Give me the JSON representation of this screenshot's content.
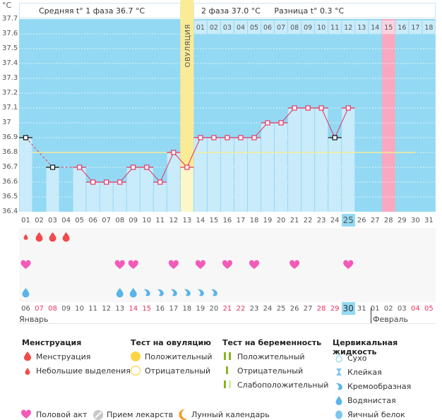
{
  "header": {
    "unit": "°C",
    "phase1": "Средняя t° 1 фаза 36.7 °C",
    "phase2": "2 фаза 37.0 °C",
    "difference": "Разница t° 0.3 °C",
    "ovulation_label": "ОВУЛЯЦИЯ"
  },
  "colors": {
    "chart_bg": "#93d9f3",
    "bar": "#c9ebfa",
    "ovulation": "#fbeb97",
    "ovulation_bar": "#fdf6c8",
    "expected_period": "#f8a9c0",
    "line": "#e8335f",
    "coverline": "#f6ec9a",
    "today": "#93d9f3"
  },
  "chart_data": {
    "type": "line",
    "title": "",
    "xlabel": "",
    "ylabel": "°C",
    "ylim": [
      36.4,
      37.7
    ],
    "yticks": [
      "37.7",
      "37.6",
      "37.5",
      "37.4",
      "37.3",
      "37.2",
      "37.1",
      "37",
      "36.9",
      "36.8",
      "36.7",
      "36.6",
      "36.5",
      "36.4"
    ],
    "cycle_days": [
      "01",
      "02",
      "03",
      "04",
      "05",
      "06",
      "07",
      "08",
      "09",
      "10",
      "11",
      "12",
      "13",
      "14",
      "15",
      "16",
      "17",
      "18",
      "19",
      "20",
      "21",
      "22",
      "23",
      "24",
      "25",
      "26",
      "27",
      "28",
      "29",
      "30",
      "31"
    ],
    "post_ovulation_days": [
      "01",
      "02",
      "03",
      "04",
      "05",
      "06",
      "07",
      "08",
      "09",
      "10",
      "11",
      "12",
      "13",
      "14",
      "15",
      "16",
      "17",
      "18"
    ],
    "temperatures": [
      36.9,
      null,
      36.7,
      null,
      36.7,
      36.6,
      36.6,
      36.6,
      36.7,
      36.7,
      36.6,
      36.8,
      36.7,
      36.9,
      36.9,
      36.9,
      36.9,
      36.9,
      37.0,
      37.0,
      37.1,
      37.1,
      37.1,
      36.9,
      37.1,
      null,
      null,
      null,
      null,
      null,
      null
    ],
    "excluded_points": [
      1,
      3,
      24
    ],
    "coverline": 36.8,
    "ovulation_day": 13,
    "expected_period_day": 28,
    "current_cycle_day": 25,
    "dates": [
      "06",
      "07",
      "08",
      "09",
      "10",
      "11",
      "12",
      "13",
      "14",
      "15",
      "16",
      "17",
      "18",
      "19",
      "20",
      "21",
      "22",
      "23",
      "24",
      "25",
      "26",
      "27",
      "28",
      "29",
      "30",
      "31",
      "01",
      "02",
      "03",
      "04",
      "05"
    ],
    "weekend_dates": [
      2,
      3,
      9,
      10,
      16,
      17,
      23,
      24,
      30,
      31
    ],
    "today_index": 25,
    "months": [
      "Январь",
      "Февраль"
    ],
    "menstruation": [
      "light",
      "heavy",
      "heavy",
      "heavy",
      null,
      null,
      null,
      null,
      null,
      null,
      null,
      null,
      null,
      null,
      null,
      null,
      null,
      null,
      null,
      null,
      null,
      null,
      null,
      null,
      null,
      null,
      null,
      null,
      null,
      null,
      null
    ],
    "intercourse_days": [
      1,
      8,
      9,
      12,
      14,
      16,
      18,
      21,
      25
    ],
    "cervical_fluid": [
      "watery",
      null,
      null,
      null,
      null,
      null,
      null,
      "watery",
      "watery",
      "creamy",
      "creamy",
      "creamy",
      "creamy",
      "creamy",
      "creamy",
      null,
      null,
      null,
      null,
      null,
      null,
      null,
      null,
      null,
      null,
      null,
      null,
      null,
      null,
      null,
      null
    ]
  },
  "legend": {
    "menstruation": {
      "title": "Менструация",
      "items": [
        "Менструация",
        "Небольшие выделения"
      ]
    },
    "ovulation_test": {
      "title": "Тест на овуляцию",
      "items": [
        "Положительный",
        "Отрицательный"
      ]
    },
    "pregnancy_test": {
      "title": "Тест на беременность",
      "items": [
        "Положительный",
        "Отрицательный",
        "Слабоположительный"
      ]
    },
    "cervical_fluid": {
      "title": "Цервикальная жидкость",
      "items": [
        "Сухо",
        "Клейкая",
        "Кремообразная",
        "Водянистая",
        "Яичный белок"
      ]
    },
    "bottom": [
      "Половой акт",
      "Прием лекарств",
      "Лунный календарь"
    ]
  }
}
